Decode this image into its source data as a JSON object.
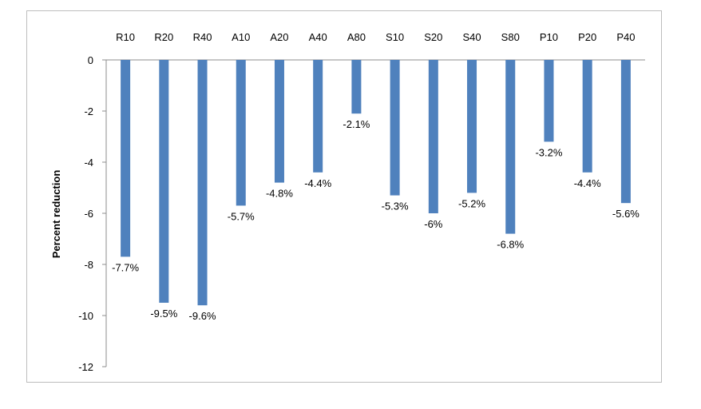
{
  "chart_data": {
    "type": "bar",
    "categories": [
      "R10",
      "R20",
      "R40",
      "A10",
      "A20",
      "A40",
      "A80",
      "S10",
      "S20",
      "S40",
      "S80",
      "P10",
      "P20",
      "P40"
    ],
    "values": [
      -7.7,
      -9.5,
      -9.6,
      -5.7,
      -4.8,
      -4.4,
      -2.1,
      -5.3,
      -6,
      -5.2,
      -6.8,
      -3.2,
      -4.4,
      -5.6
    ],
    "data_labels": [
      "-7.7%",
      "-9.5%",
      "-9.6%",
      "-5.7%",
      "-4.8%",
      "-4.4%",
      "-2.1%",
      "-5.3%",
      "-6%",
      "-5.2%",
      "-6.8%",
      "-3.2%",
      "-4.4%",
      "-5.6%"
    ],
    "ylabel": "Percent reduction",
    "ylim": [
      -12,
      0
    ],
    "yticks": [
      0,
      -2,
      -4,
      -6,
      -8,
      -10,
      -12
    ],
    "grid": false,
    "legend": "none",
    "bar_color": "#4f81bd"
  }
}
